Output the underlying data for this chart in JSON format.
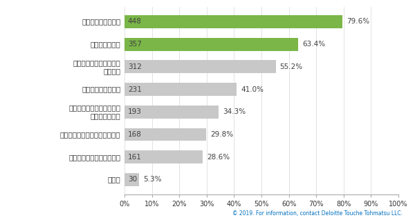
{
  "categories": [
    "参加者の年代の偏り",
    "参加人数の確保",
    "多様な意見の集約・施策\nへの反映",
    "継続的な参加の確保",
    "市・町政にかかる参加者の\n知識のばらつき",
    "実施にかかるコスト・職員負担",
    "参加者の考え、職業の偏り",
    "その他"
  ],
  "values": [
    79.6,
    63.4,
    55.2,
    41.0,
    34.3,
    29.8,
    28.6,
    5.3
  ],
  "counts": [
    448,
    357,
    312,
    231,
    193,
    168,
    161,
    30
  ],
  "percentages": [
    "79.6%",
    "63.4%",
    "55.2%",
    "41.0%",
    "34.3%",
    "29.8%",
    "28.6%",
    "5.3%"
  ],
  "bar_colors": [
    "#7ab648",
    "#7ab648",
    "#c8c8c8",
    "#c8c8c8",
    "#c8c8c8",
    "#c8c8c8",
    "#c8c8c8",
    "#c8c8c8"
  ],
  "xlim": [
    0,
    100
  ],
  "xticks": [
    0,
    10,
    20,
    30,
    40,
    50,
    60,
    70,
    80,
    90,
    100
  ],
  "xtick_labels": [
    "0%",
    "10%",
    "20%",
    "30%",
    "40%",
    "50%",
    "60%",
    "70%",
    "80%",
    "90%",
    "100%"
  ],
  "footer_text": "© 2019. For information, contact Deloitte Touche Tohmatsu LLC.",
  "bg_color": "#ffffff",
  "bar_height": 0.58,
  "count_color": "#404040",
  "pct_color": "#404040",
  "axis_label_color": "#333333",
  "footer_color": "#0070c0",
  "grid_color": "#dddddd",
  "spine_color": "#aaaaaa"
}
